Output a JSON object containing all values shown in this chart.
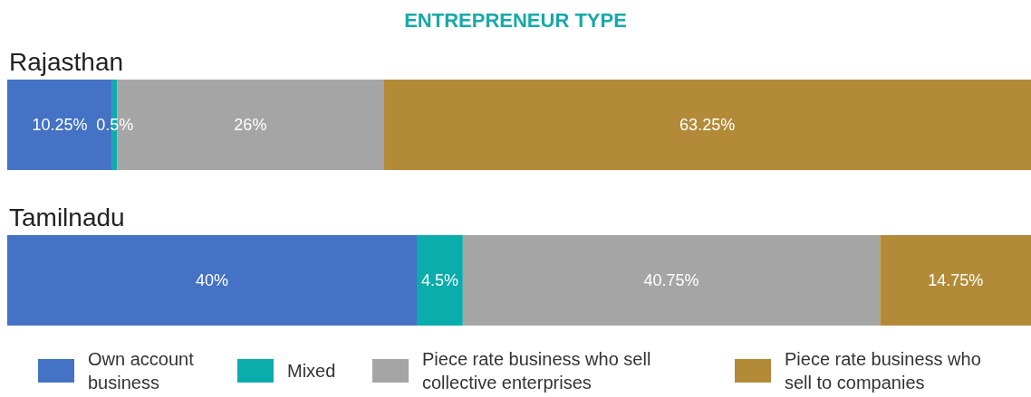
{
  "chart_data": {
    "type": "bar",
    "orientation": "horizontal",
    "stacked": true,
    "title": "ENTREPRENEUR TYPE",
    "categories": [
      "Rajasthan",
      "Tamilnadu"
    ],
    "series": [
      {
        "name": "Own account business",
        "color": "#4472c4",
        "values": [
          10.25,
          40
        ],
        "value_labels": [
          "10.25%",
          "40%"
        ]
      },
      {
        "name": "Mixed",
        "color": "#0aacac",
        "values": [
          0.5,
          4.5
        ],
        "value_labels": [
          "0.5%",
          "4.5%"
        ]
      },
      {
        "name": "Piece rate business who sell collective enterprises",
        "color": "#a5a5a5",
        "values": [
          26,
          40.75
        ],
        "value_labels": [
          "26%",
          "40.75%"
        ]
      },
      {
        "name": "Piece rate business who sell to companies",
        "color": "#b38b38",
        "values": [
          63.25,
          14.75
        ],
        "value_labels": [
          "63.25%",
          "14.75%"
        ]
      }
    ],
    "tick_labels": "y",
    "legend": "bottom"
  }
}
